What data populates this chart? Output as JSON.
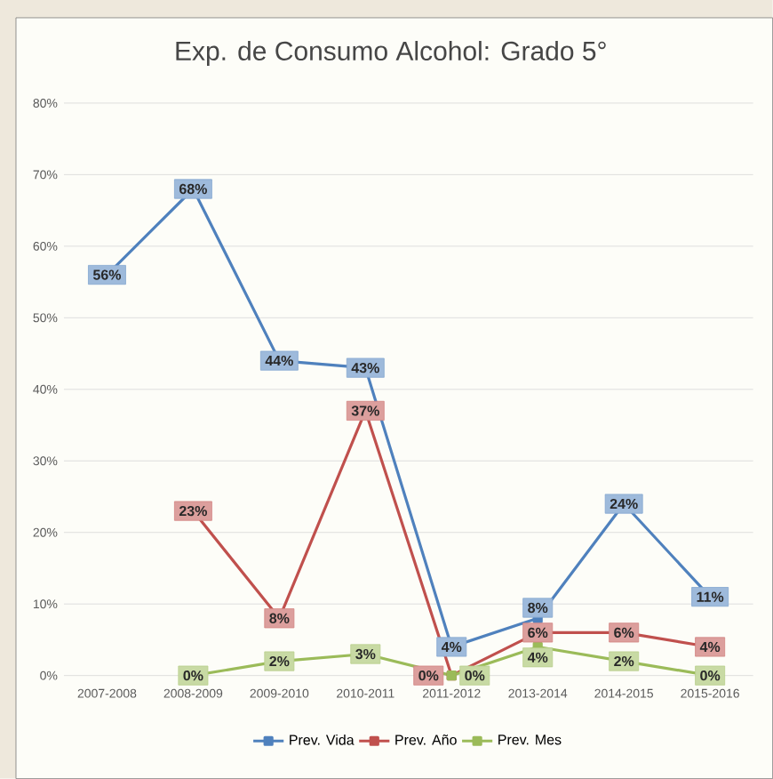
{
  "chart_data": {
    "type": "line",
    "title": "Exp. de Consumo Alcohol: Grado 5°",
    "categories": [
      "2007-2008",
      "2008-2009",
      "2009-2010",
      "2010-2011",
      "2011-2012",
      "2013-2014",
      "2014-2015",
      "2015-2016"
    ],
    "series": [
      {
        "name": "Prev. Vida",
        "color": "#4f81bd",
        "values": [
          56,
          68,
          44,
          43,
          4,
          8,
          24,
          11
        ],
        "value_labels": [
          "56%",
          "68%",
          "44%",
          "43%",
          "4%",
          "8%",
          "24%",
          "11%"
        ]
      },
      {
        "name": "Prev. Año",
        "color": "#c0504d",
        "values": [
          null,
          23,
          8,
          37,
          0,
          6,
          6,
          4
        ],
        "value_labels": [
          null,
          "23%",
          "8%",
          "37%",
          "0%",
          "6%",
          "6%",
          "4%"
        ]
      },
      {
        "name": "Prev. Mes",
        "color": "#9bbb59",
        "values": [
          null,
          0,
          2,
          3,
          0,
          4,
          2,
          0
        ],
        "value_labels": [
          null,
          "0%",
          "2%",
          "3%",
          "0%",
          "4%",
          "2%",
          "0%"
        ]
      }
    ],
    "ylim": [
      0,
      80
    ],
    "yticks": [
      {
        "value": 0,
        "label": "0%"
      },
      {
        "value": 10,
        "label": "10%"
      },
      {
        "value": 20,
        "label": "20%"
      },
      {
        "value": 30,
        "label": "30%"
      },
      {
        "value": 40,
        "label": "40%"
      },
      {
        "value": 50,
        "label": "50%"
      },
      {
        "value": 60,
        "label": "60%"
      },
      {
        "value": 70,
        "label": "70%"
      },
      {
        "value": 80,
        "label": "80%"
      }
    ],
    "grid": "y",
    "legend": "bottom",
    "marker": "square"
  }
}
